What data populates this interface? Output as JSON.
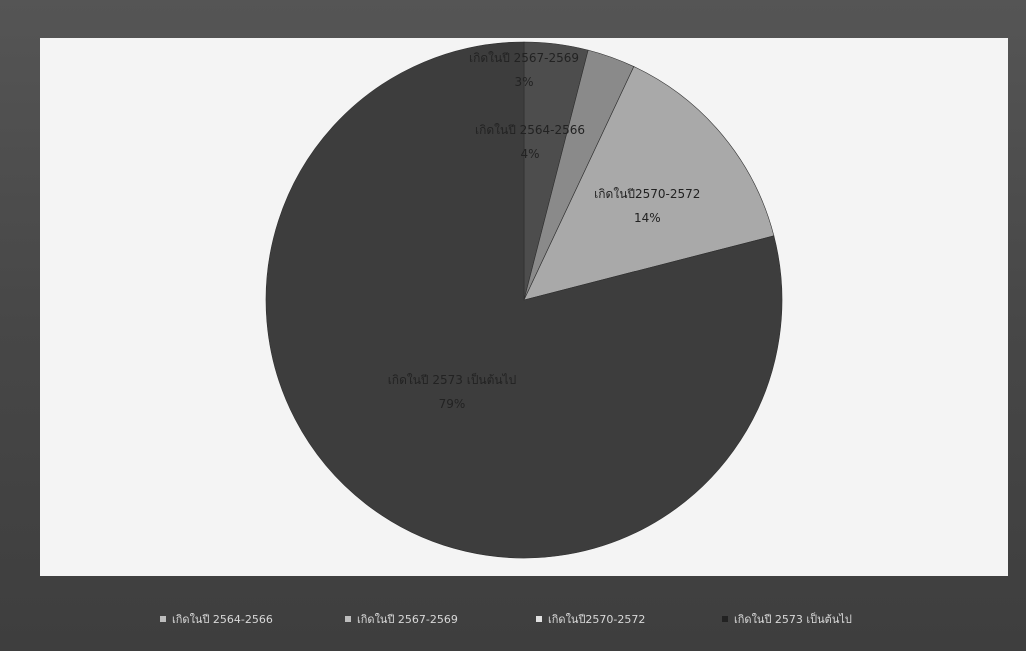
{
  "chart_data": {
    "type": "pie",
    "title": "",
    "categories": [
      "เกิดในปี 2564-2566",
      "เกิดในปี 2567-2569",
      "เกิดในปี2570-2572",
      "เกิดในปี 2573 เป็นต้นไป"
    ],
    "values": [
      4,
      3,
      14,
      79
    ],
    "value_labels": [
      "4%",
      "3%",
      "14%",
      "79%"
    ],
    "colors": [
      "#4d4d4d",
      "#8a8a8a",
      "#a9a9a9",
      "#3d3d3d"
    ],
    "legend_position": "bottom",
    "start_angle_deg": 0,
    "direction": "clockwise"
  }
}
